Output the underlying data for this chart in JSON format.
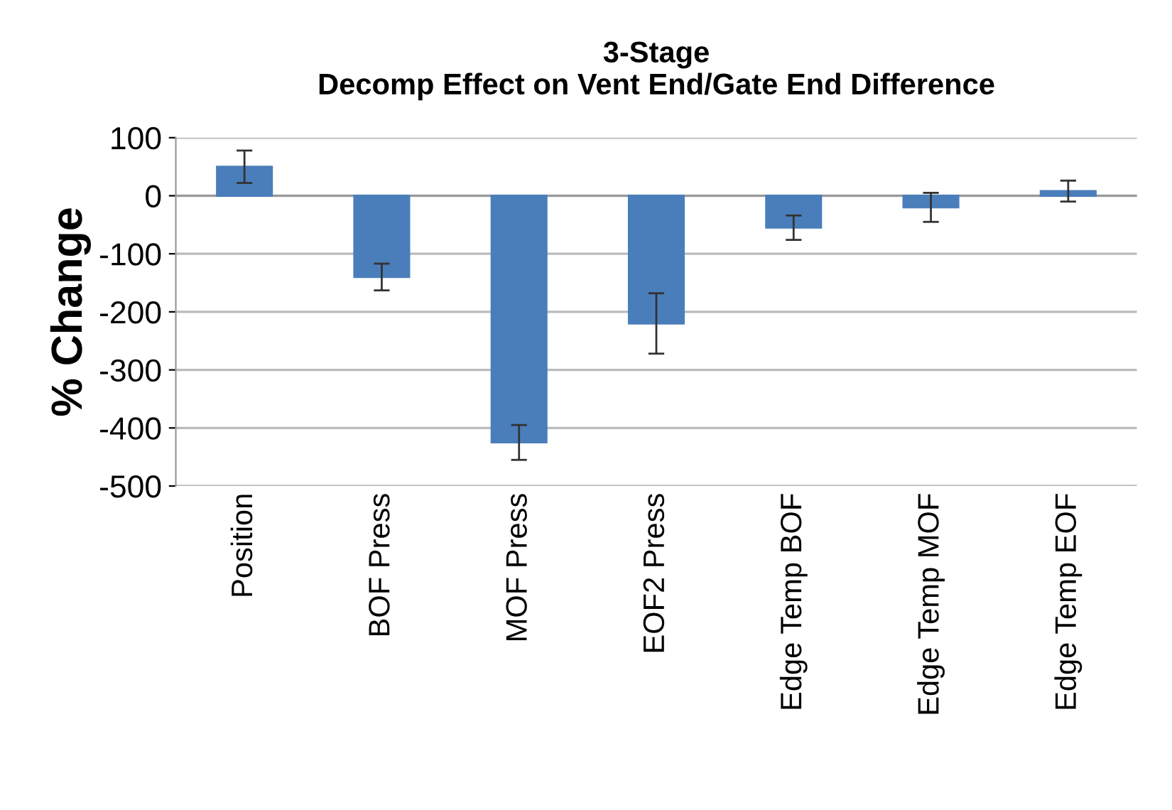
{
  "chart_data": {
    "type": "bar",
    "title": "3-Stage\nDecomp Effect on Vent End/Gate End Difference",
    "ylabel": "% Change",
    "categories": [
      "Position",
      "BOF Press",
      "MOF Press",
      "EOF2 Press",
      "Edge Temp BOF",
      "Edge Temp MOF",
      "Edge Temp EOF"
    ],
    "values": [
      50,
      -140,
      -425,
      -220,
      -55,
      -20,
      8
    ],
    "errors": [
      28,
      23,
      30,
      52,
      21,
      25,
      18
    ],
    "color": "#4a7ebb",
    "ylim": [
      -500,
      100
    ],
    "yticks": [
      -500,
      -400,
      -300,
      -200,
      -100,
      0,
      100
    ],
    "grid": "y",
    "legend": false
  }
}
